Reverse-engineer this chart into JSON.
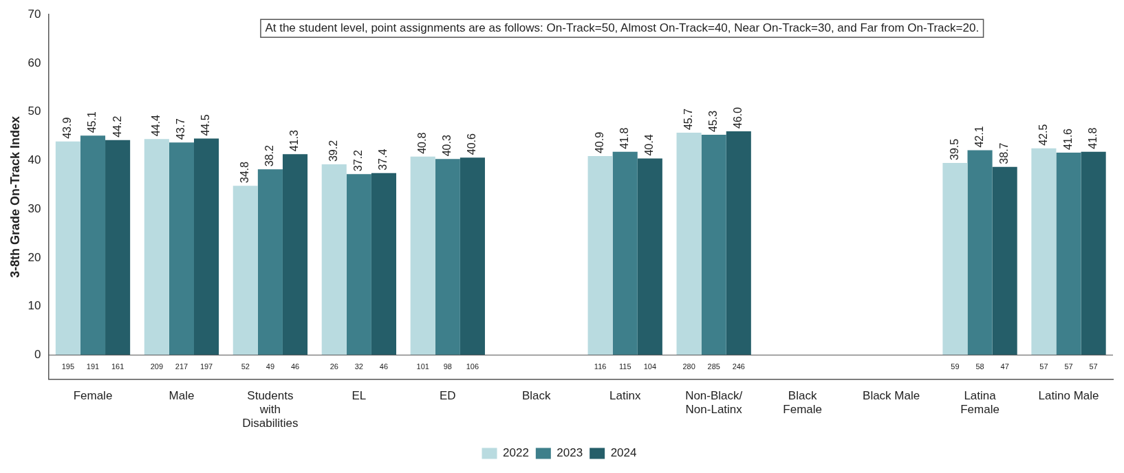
{
  "chart_data": {
    "type": "bar",
    "ylabel": "3-8th Grade On-Track Index",
    "categories": [
      "Female",
      "Male",
      "Students\nwith\nDisabilities",
      "EL",
      "ED",
      "Black",
      "Latinx",
      "Non-Black/\nNon-Latinx",
      "Black\nFemale",
      "Black Male",
      "Latina\nFemale",
      "Latino Male"
    ],
    "series": [
      {
        "name": "2022",
        "color": "#b9dbe0",
        "values": [
          43.9,
          44.4,
          34.8,
          39.2,
          40.8,
          null,
          40.9,
          45.7,
          null,
          null,
          39.5,
          42.5
        ],
        "value_labels": [
          "43.9",
          "44.4",
          "34.8",
          "39.2",
          "40.8",
          null,
          "40.9",
          "45.7",
          null,
          null,
          "39.5",
          "42.5"
        ]
      },
      {
        "name": "2023",
        "color": "#3e7f8b",
        "values": [
          45.1,
          43.7,
          38.2,
          37.2,
          40.3,
          null,
          41.8,
          45.3,
          null,
          null,
          42.1,
          41.6
        ],
        "value_labels": [
          "45.1",
          "43.7",
          "38.2",
          "37.2",
          "40.3",
          null,
          "41.8",
          "45.3",
          null,
          null,
          "42.1",
          "41.6"
        ]
      },
      {
        "name": "2024",
        "color": "#255e69",
        "values": [
          44.2,
          44.5,
          41.3,
          37.4,
          40.6,
          null,
          40.4,
          46.0,
          null,
          null,
          38.7,
          41.8
        ],
        "value_labels": [
          "44.2",
          "44.5",
          "41.3",
          "37.4",
          "40.6",
          null,
          "40.4",
          "46.0",
          null,
          null,
          "38.7",
          "41.8"
        ]
      }
    ],
    "ylim": [
      -5,
      70
    ],
    "yticks": [
      0,
      10,
      20,
      30,
      40,
      50,
      60,
      70
    ],
    "grid": false,
    "legend": "bottom",
    "ref_lines": [
      {
        "axis": "y",
        "value": 0,
        "color": "#555555"
      }
    ],
    "annotations": [
      "At the student level, point assignments are as follows: On-Track=50, Almost On-Track=40, Near On-Track=30, and Far from On-Track=20.",
      "195",
      "191",
      "161",
      "209",
      "217",
      "197",
      "52",
      "49",
      "46",
      "26",
      "32",
      "46",
      "101",
      "98",
      "106",
      "116",
      "115",
      "104",
      "280",
      "285",
      "246",
      "59",
      "58",
      "47",
      "57",
      "57",
      "57"
    ]
  }
}
